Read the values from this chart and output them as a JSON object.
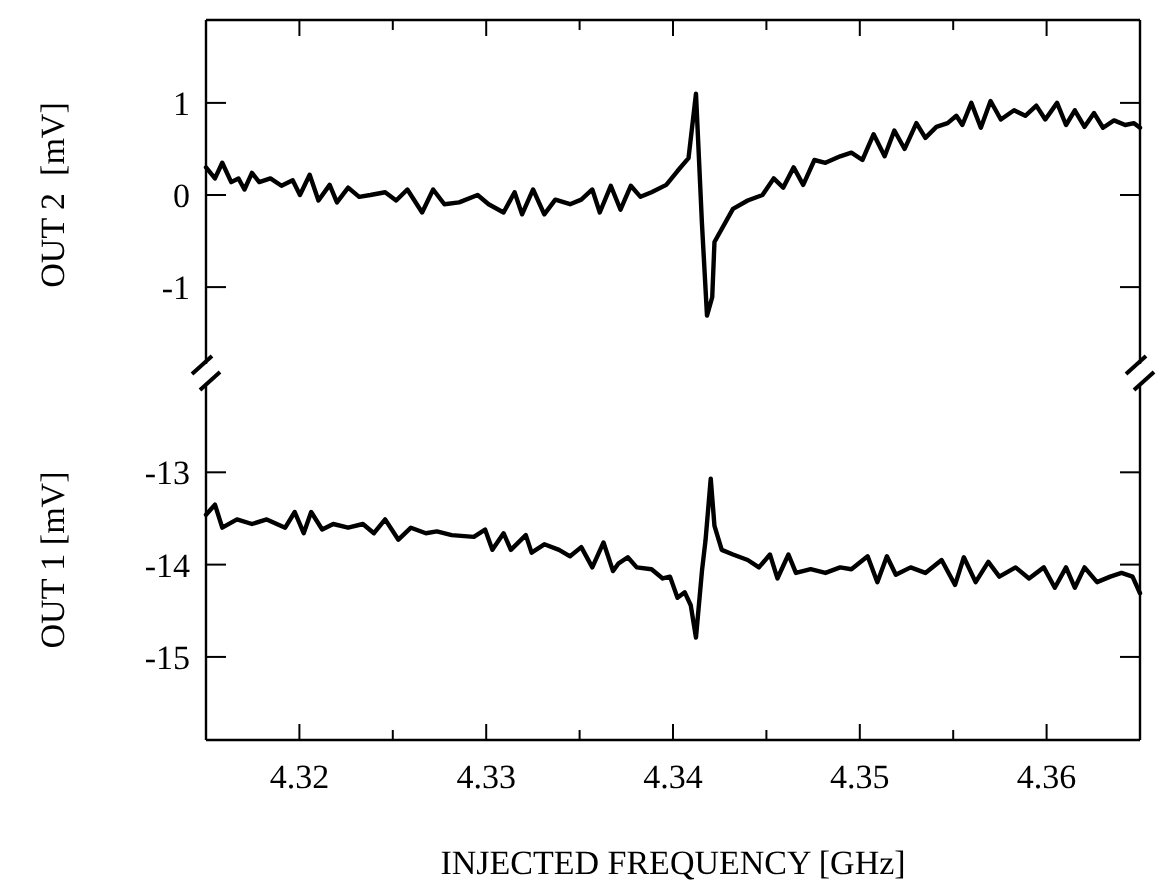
{
  "chart_data": [
    {
      "type": "line",
      "ylabel": "OUT 2  [mV]",
      "xlim": [
        4.315,
        4.365
      ],
      "ylim": [
        -1.9,
        1.9
      ],
      "yticks": [
        -1,
        0,
        1
      ],
      "tick_labels": "y",
      "grid": false,
      "marker": "none",
      "line_style": "solid",
      "xticks": [
        4.32,
        {
          "value": 4.325,
          "label": null
        },
        4.33,
        {
          "value": 4.335,
          "label": null
        },
        4.34,
        {
          "value": 4.345,
          "label": null
        },
        4.35,
        {
          "value": 4.355,
          "label": null
        },
        4.36
      ],
      "series": [
        {
          "color": "#000000",
          "x": [
            4.315,
            4.31548,
            4.31587,
            4.31635,
            4.31674,
            4.31706,
            4.31746,
            4.31785,
            4.31845,
            4.31904,
            4.31964,
            4.32003,
            4.32055,
            4.32102,
            4.32162,
            4.32201,
            4.32261,
            4.3232,
            4.3238,
            4.32459,
            4.32518,
            4.32578,
            4.32657,
            4.32716,
            4.32776,
            4.32855,
            4.32954,
            4.33013,
            4.33093,
            4.33152,
            4.33192,
            4.33251,
            4.33311,
            4.3337,
            4.33449,
            4.33509,
            4.33568,
            4.33608,
            4.33667,
            4.33719,
            4.33774,
            4.33826,
            4.33885,
            4.33964,
            4.34024,
            4.34083,
            4.34123,
            4.34155,
            4.34182,
            4.3421,
            4.34222,
            4.34321,
            4.344,
            4.34479,
            4.34539,
            4.3459,
            4.34646,
            4.34697,
            4.34757,
            4.34816,
            4.34895,
            4.34955,
            4.35014,
            4.35074,
            4.35133,
            4.35185,
            4.3524,
            4.35303,
            4.35351,
            4.3541,
            4.3547,
            4.35517,
            4.35549,
            4.35597,
            4.35648,
            4.357,
            4.35755,
            4.35826,
            4.35886,
            4.35945,
            4.35993,
            4.36056,
            4.36104,
            4.36151,
            4.36203,
            4.36254,
            4.36302,
            4.36361,
            4.36421,
            4.36468,
            4.365
          ],
          "values": [
            0.3,
            0.18,
            0.35,
            0.14,
            0.18,
            0.06,
            0.24,
            0.14,
            0.18,
            0.1,
            0.16,
            0,
            0.22,
            -0.06,
            0.11,
            -0.08,
            0.08,
            -0.02,
            0,
            0.03,
            -0.06,
            0.06,
            -0.19,
            0.06,
            -0.1,
            -0.08,
            0,
            -0.1,
            -0.19,
            0.03,
            -0.21,
            0.06,
            -0.21,
            -0.05,
            -0.1,
            -0.05,
            0.06,
            -0.19,
            0.1,
            -0.16,
            0.1,
            -0.02,
            0.03,
            0.11,
            0.26,
            0.4,
            1.1,
            -0.31,
            -1.31,
            -1.11,
            -0.51,
            -0.15,
            -0.06,
            0,
            0.18,
            0.08,
            0.3,
            0.11,
            0.38,
            0.35,
            0.42,
            0.46,
            0.38,
            0.66,
            0.42,
            0.7,
            0.5,
            0.78,
            0.62,
            0.74,
            0.78,
            0.86,
            0.76,
            1.0,
            0.73,
            1.02,
            0.82,
            0.92,
            0.86,
            0.97,
            0.82,
            1.0,
            0.76,
            0.92,
            0.74,
            0.89,
            0.73,
            0.81,
            0.76,
            0.78,
            0.73
          ]
        }
      ]
    },
    {
      "type": "line",
      "ylabel": "OUT 1 [mV]",
      "xlabel": "INJECTED FREQUENCY [GHz]",
      "xlim": [
        4.315,
        4.365
      ],
      "ylim": [
        -15.9,
        -12
      ],
      "yticks": [
        -15,
        -14,
        -13
      ],
      "grid": false,
      "marker": "none",
      "line_style": "solid",
      "xticks": [
        4.32,
        {
          "value": 4.325,
          "label": null
        },
        4.33,
        {
          "value": 4.335,
          "label": null
        },
        4.34,
        {
          "value": 4.345,
          "label": null
        },
        4.35,
        {
          "value": 4.355,
          "label": null
        },
        4.36
      ],
      "series": [
        {
          "color": "#000000",
          "x": [
            4.315,
            4.31548,
            4.31587,
            4.31666,
            4.31746,
            4.31825,
            4.31924,
            4.31975,
            4.32023,
            4.32063,
            4.32122,
            4.32181,
            4.32261,
            4.3234,
            4.32399,
            4.32459,
            4.3253,
            4.32597,
            4.32677,
            4.32736,
            4.32815,
            4.32934,
            4.32994,
            4.33033,
            4.33093,
            4.33132,
            4.33212,
            4.33243,
            4.33311,
            4.3339,
            4.33449,
            4.33509,
            4.33568,
            4.33628,
            4.33679,
            4.33707,
            4.33758,
            4.33806,
            4.33885,
            4.33945,
            4.33984,
            4.34024,
            4.34063,
            4.34095,
            4.34123,
            4.34155,
            4.34174,
            4.34202,
            4.34222,
            4.34261,
            4.34321,
            4.344,
            4.3446,
            4.34519,
            4.34559,
            4.34618,
            4.34658,
            4.34737,
            4.34816,
            4.34895,
            4.34955,
            4.35042,
            4.35094,
            4.35145,
            4.35193,
            4.35272,
            4.35351,
            4.35438,
            4.3551,
            4.35557,
            4.3562,
            4.35688,
            4.35747,
            4.35834,
            4.35906,
            4.35985,
            4.36044,
            4.36104,
            4.36151,
            4.36203,
            4.3627,
            4.36341,
            4.36401,
            4.3646,
            4.365
          ],
          "values": [
            -13.46,
            -13.35,
            -13.6,
            -13.51,
            -13.56,
            -13.51,
            -13.6,
            -13.43,
            -13.66,
            -13.43,
            -13.62,
            -13.56,
            -13.6,
            -13.56,
            -13.66,
            -13.51,
            -13.73,
            -13.6,
            -13.66,
            -13.64,
            -13.68,
            -13.7,
            -13.62,
            -13.84,
            -13.66,
            -13.84,
            -13.68,
            -13.87,
            -13.78,
            -13.84,
            -13.91,
            -13.81,
            -14.03,
            -13.76,
            -14.07,
            -13.99,
            -13.92,
            -14.03,
            -14.05,
            -14.15,
            -14.13,
            -14.36,
            -14.3,
            -14.44,
            -14.79,
            -14.07,
            -13.74,
            -13.07,
            -13.58,
            -13.84,
            -13.89,
            -13.95,
            -14.03,
            -13.89,
            -14.15,
            -13.89,
            -14.09,
            -14.05,
            -14.09,
            -14.03,
            -14.05,
            -13.91,
            -14.19,
            -13.91,
            -14.11,
            -14.03,
            -14.09,
            -13.95,
            -14.22,
            -13.92,
            -14.19,
            -13.97,
            -14.13,
            -14.03,
            -14.15,
            -14.03,
            -14.25,
            -14.03,
            -14.25,
            -14.03,
            -14.19,
            -14.13,
            -14.09,
            -14.13,
            -14.31
          ]
        }
      ]
    }
  ]
}
